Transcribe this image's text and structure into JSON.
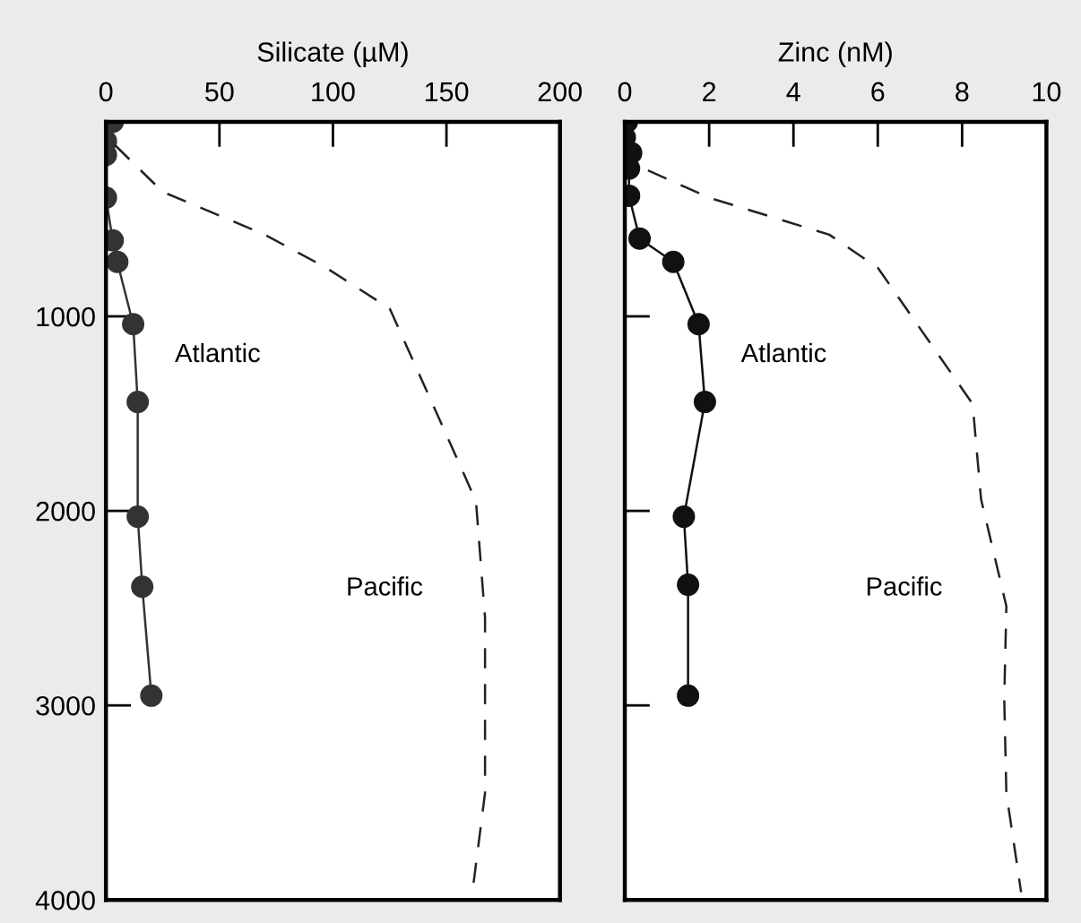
{
  "chart_data": [
    {
      "type": "line",
      "xlabel": "Silicate (µM)",
      "xlim": [
        0,
        200
      ],
      "xticks": [
        0,
        50,
        100,
        150,
        200
      ],
      "ylim": [
        4000,
        0
      ],
      "yticks": [
        {
          "value": 0,
          "label": null
        },
        1000,
        2000,
        3000,
        4000
      ],
      "grid": false,
      "legend": false,
      "series": [
        {
          "name": "Atlantic",
          "color": "#333333",
          "marker": "circle",
          "line_style": "solid",
          "x": [
            3,
            0,
            0,
            0,
            3,
            5,
            12,
            14,
            14,
            16,
            20
          ],
          "values": [
            0,
            100,
            170,
            390,
            610,
            720,
            1040,
            1440,
            2030,
            2390,
            2950
          ]
        },
        {
          "name": "Pacific",
          "color": "#222222",
          "marker": "none",
          "line_style": "dashed",
          "x": [
            4,
            25,
            70,
            97,
            125,
            155,
            163,
            167,
            167,
            161
          ],
          "values": [
            120,
            360,
            580,
            750,
            960,
            1740,
            1950,
            2550,
            3450,
            4000
          ]
        }
      ]
    },
    {
      "type": "line",
      "xlabel": "Zinc (nM)",
      "xlim": [
        0,
        10
      ],
      "xticks": [
        0,
        2,
        4,
        6,
        8,
        10
      ],
      "ylim": [
        4000,
        0
      ],
      "yticks": [
        0,
        1000,
        2000,
        3000,
        4000
      ],
      "tick_labels": "x",
      "grid": false,
      "legend": false,
      "series": [
        {
          "name": "Atlantic",
          "color": "#111111",
          "marker": "circle",
          "line_style": "solid",
          "x": [
            0.05,
            0,
            0.15,
            0.1,
            0.1,
            0.35,
            1.15,
            1.75,
            1.9,
            1.4,
            1.5,
            1.5
          ],
          "values": [
            0,
            80,
            160,
            240,
            380,
            600,
            720,
            1040,
            1440,
            2030,
            2380,
            2950
          ]
        },
        {
          "name": "Pacific",
          "color": "#222222",
          "marker": "none",
          "line_style": "dashed",
          "x": [
            0.55,
            2.0,
            4.85,
            6.0,
            8.25,
            8.45,
            9.05,
            9.0,
            9.05,
            9.4
          ],
          "values": [
            250,
            390,
            580,
            750,
            1450,
            1940,
            2490,
            2970,
            3450,
            3960
          ]
        }
      ]
    }
  ]
}
